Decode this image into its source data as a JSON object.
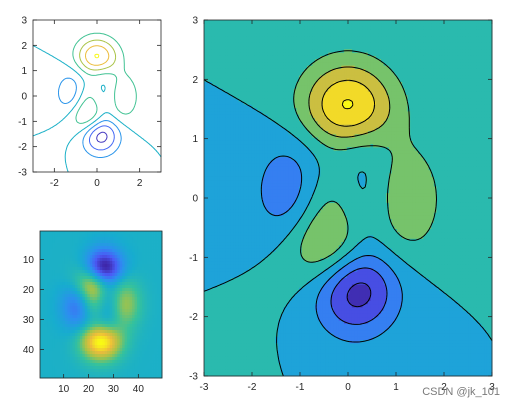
{
  "chart_data": [
    {
      "type": "contour",
      "function": "peaks",
      "style": "contour lines",
      "xlim": [
        -3,
        3
      ],
      "ylim": [
        -3,
        3
      ],
      "xticks": [
        "-2",
        "0",
        "2"
      ],
      "yticks": [
        "3",
        "2",
        "1",
        "0",
        "-1",
        "-2",
        "-3"
      ],
      "levels": [
        -6,
        -4,
        -2,
        0,
        2,
        4,
        6,
        8
      ],
      "colormap": [
        "#3e26a8",
        "#4a5bf5",
        "#2d8ef0",
        "#17adce",
        "#36c29b",
        "#a6c347",
        "#ecbc3b",
        "#f9fb14"
      ]
    },
    {
      "type": "heatmap",
      "function": "peaks",
      "grid_size": 49,
      "xticks": [
        "10",
        "20",
        "30",
        "40"
      ],
      "yticks": [
        "10",
        "20",
        "30",
        "40"
      ],
      "colormap": [
        "#3e26a8",
        "#4a5bf5",
        "#2d8ef0",
        "#17adce",
        "#36c29b",
        "#a6c347",
        "#ecbc3b",
        "#f9fb14"
      ]
    },
    {
      "type": "contour-filled",
      "function": "peaks",
      "style": "filled contours with black lines",
      "xlim": [
        -3,
        3
      ],
      "ylim": [
        -3,
        3
      ],
      "xticks": [
        "-3",
        "-2",
        "-1",
        "0",
        "1",
        "2",
        "3"
      ],
      "yticks": [
        "3",
        "2",
        "1",
        "0",
        "-1",
        "-2",
        "-3"
      ],
      "levels": [
        -6,
        -4,
        -2,
        0,
        2,
        4,
        6,
        8
      ],
      "colormap": [
        "#3e26a8",
        "#4a5bf5",
        "#2d8ef0",
        "#17adce",
        "#36c29b",
        "#a6c347",
        "#ecbc3b",
        "#f9fb14"
      ]
    }
  ],
  "watermark": "CSDN @jk_101"
}
